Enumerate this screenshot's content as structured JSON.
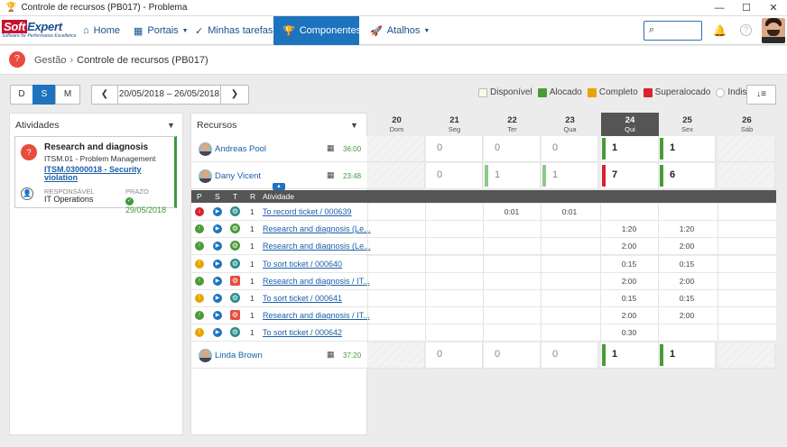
{
  "window": {
    "title": "Controle de recursos (PB017) - Problema"
  },
  "logo": {
    "brand_soft": "Soft",
    "brand_expert": "Expert",
    "tagline": "Software for Performance Excellence"
  },
  "nav": {
    "items": [
      {
        "label": "Home",
        "icon": "home-icon"
      },
      {
        "label": "Portais",
        "icon": "grid-icon"
      },
      {
        "label": "Minhas tarefas",
        "icon": "check-icon"
      },
      {
        "label": "Componentes",
        "icon": "trophy-icon"
      },
      {
        "label": "Atalhos",
        "icon": "rocket-icon"
      }
    ],
    "search_placeholder": "",
    "help": "?"
  },
  "breadcrumb": {
    "parent": "Gestão",
    "current": "Controle de recursos (PB017)"
  },
  "toolbar": {
    "views": [
      "D",
      "S",
      "M"
    ],
    "selected_view": "S",
    "prev": "❮",
    "next": "❯",
    "date_range": "20/05/2018 – 26/05/2018",
    "sort": "↓≡"
  },
  "legend": [
    {
      "label": "Disponível",
      "color": "#fdf9e6"
    },
    {
      "label": "Alocado",
      "color": "#4a9a3a"
    },
    {
      "label": "Completo",
      "color": "#e8a400"
    },
    {
      "label": "Superalocado",
      "color": "#d9212f"
    },
    {
      "label": "Indisponível",
      "color": "#ffffff"
    }
  ],
  "activities_panel": {
    "title": "Atividades",
    "card": {
      "title": "Research and diagnosis",
      "process": "ITSM.01 - Problem Management",
      "link": "ITSM.03000018 - Security violation",
      "resp_label": "RESPONSÁVEL",
      "resp_value": "IT Operations",
      "deadline_label": "PRAZO",
      "deadline_value": "29/05/2018"
    }
  },
  "resources_panel": {
    "title": "Recursos"
  },
  "days": [
    {
      "num": "20",
      "name": "Dom"
    },
    {
      "num": "21",
      "name": "Seg"
    },
    {
      "num": "22",
      "name": "Ter"
    },
    {
      "num": "23",
      "name": "Qua"
    },
    {
      "num": "24",
      "name": "Qui"
    },
    {
      "num": "25",
      "name": "Sex"
    },
    {
      "num": "26",
      "name": "Sáb"
    }
  ],
  "resources": [
    {
      "name": "Andreas Pool",
      "hours": "36:00",
      "values": [
        "",
        "0",
        "0",
        "0",
        "1",
        "1",
        ""
      ],
      "bars": [
        "",
        "",
        "",
        "",
        "#4a9a3a",
        "#4a9a3a",
        ""
      ]
    },
    {
      "name": "Dany Vicent",
      "hours": "23:48",
      "values": [
        "",
        "0",
        "1",
        "1",
        "7",
        "6",
        ""
      ],
      "bars": [
        "",
        "",
        "#8fc98a",
        "#8fc98a",
        "#d9212f",
        "#4a9a3a",
        ""
      ]
    },
    {
      "name": "Linda Brown",
      "hours": "37:20",
      "values": [
        "",
        "0",
        "0",
        "0",
        "1",
        "1",
        ""
      ],
      "bars": [
        "",
        "",
        "",
        "",
        "#4a9a3a",
        "#4a9a3a",
        ""
      ]
    }
  ],
  "activity_headers": {
    "p": "P",
    "s": "S",
    "t": "T",
    "r": "R",
    "name": "Atividade"
  },
  "activities": [
    {
      "p": "down",
      "t": "teal",
      "r": "1",
      "name": "To record ticket / 000639",
      "times": [
        "",
        "",
        "0:01",
        "0:01",
        "",
        "",
        ""
      ]
    },
    {
      "p": "up",
      "t": "green",
      "r": "1",
      "name": "Research and diagnosis (Le...",
      "times": [
        "",
        "",
        "",
        "",
        "1:20",
        "1:20",
        ""
      ]
    },
    {
      "p": "up",
      "t": "green",
      "r": "1",
      "name": "Research and diagnosis (Le...",
      "times": [
        "",
        "",
        "",
        "",
        "2:00",
        "2:00",
        ""
      ]
    },
    {
      "p": "warn",
      "t": "teal",
      "r": "1",
      "name": "To sort ticket / 000640",
      "times": [
        "",
        "",
        "",
        "",
        "0:15",
        "0:15",
        ""
      ]
    },
    {
      "p": "up",
      "t": "red",
      "r": "1",
      "name": "Research and diagnosis / IT...",
      "times": [
        "",
        "",
        "",
        "",
        "2:00",
        "2:00",
        ""
      ]
    },
    {
      "p": "warn",
      "t": "teal",
      "r": "1",
      "name": "To sort ticket / 000641",
      "times": [
        "",
        "",
        "",
        "",
        "0:15",
        "0:15",
        ""
      ]
    },
    {
      "p": "up",
      "t": "red",
      "r": "1",
      "name": "Research and diagnosis / IT...",
      "times": [
        "",
        "",
        "",
        "",
        "2:00",
        "2:00",
        ""
      ]
    },
    {
      "p": "warn",
      "t": "teal",
      "r": "1",
      "name": "To sort ticket / 000642",
      "times": [
        "",
        "",
        "",
        "",
        "0:30",
        "",
        ""
      ]
    }
  ]
}
